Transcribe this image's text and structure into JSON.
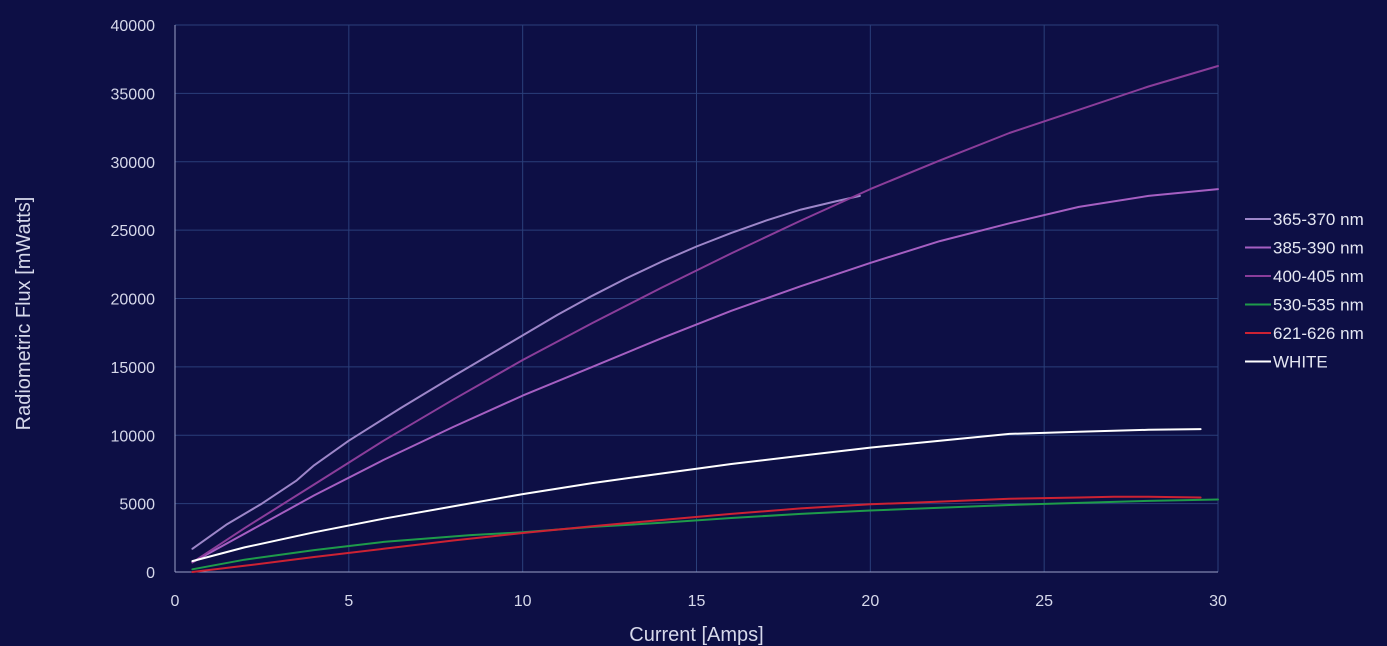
{
  "chart_data": {
    "type": "line",
    "title": "",
    "xlabel": "Current [Amps]",
    "ylabel": "Radiometric Flux [mWatts]",
    "xlim": [
      0,
      30
    ],
    "ylim": [
      0,
      40000
    ],
    "xticks": [
      0,
      5,
      10,
      15,
      20,
      25,
      30
    ],
    "yticks": [
      0,
      5000,
      10000,
      15000,
      20000,
      25000,
      30000,
      35000,
      40000
    ],
    "grid": true,
    "legend_position": "right",
    "series": [
      {
        "name": "365-370 nm",
        "color": "#9d86c9",
        "points": [
          [
            0.5,
            1700
          ],
          [
            1.5,
            3500
          ],
          [
            2.5,
            5000
          ],
          [
            3.5,
            6700
          ],
          [
            4,
            7800
          ],
          [
            5,
            9600
          ],
          [
            6.5,
            12000
          ],
          [
            8,
            14300
          ],
          [
            9,
            15800
          ],
          [
            10,
            17300
          ],
          [
            11,
            18800
          ],
          [
            12,
            20200
          ],
          [
            13,
            21500
          ],
          [
            14,
            22700
          ],
          [
            15,
            23800
          ],
          [
            16,
            24800
          ],
          [
            17,
            25700
          ],
          [
            18,
            26500
          ],
          [
            19,
            27100
          ],
          [
            19.7,
            27500
          ]
        ]
      },
      {
        "name": "385-390 nm",
        "color": "#a55fc2",
        "points": [
          [
            0.5,
            700
          ],
          [
            2,
            2800
          ],
          [
            4,
            5600
          ],
          [
            6,
            8200
          ],
          [
            8,
            10600
          ],
          [
            10,
            12900
          ],
          [
            12,
            15000
          ],
          [
            14,
            17100
          ],
          [
            16,
            19100
          ],
          [
            18,
            20900
          ],
          [
            20,
            22600
          ],
          [
            22,
            24200
          ],
          [
            24,
            25500
          ],
          [
            26,
            26700
          ],
          [
            28,
            27500
          ],
          [
            30,
            28000
          ]
        ]
      },
      {
        "name": "400-405 nm",
        "color": "#8a3d9a",
        "points": [
          [
            0.5,
            700
          ],
          [
            2,
            3200
          ],
          [
            4,
            6400
          ],
          [
            6,
            9600
          ],
          [
            8,
            12600
          ],
          [
            10,
            15500
          ],
          [
            12,
            18200
          ],
          [
            14,
            20800
          ],
          [
            16,
            23300
          ],
          [
            18,
            25700
          ],
          [
            20,
            28000
          ],
          [
            22,
            30100
          ],
          [
            24,
            32100
          ],
          [
            26,
            33800
          ],
          [
            28,
            35500
          ],
          [
            30,
            37000
          ]
        ]
      },
      {
        "name": "530-535 nm",
        "color": "#1e9b4a",
        "points": [
          [
            0.5,
            200
          ],
          [
            2,
            900
          ],
          [
            4,
            1600
          ],
          [
            6,
            2200
          ],
          [
            8.5,
            2700
          ],
          [
            10,
            2900
          ],
          [
            12,
            3300
          ],
          [
            14,
            3600
          ],
          [
            16,
            3950
          ],
          [
            18,
            4250
          ],
          [
            20,
            4500
          ],
          [
            22,
            4700
          ],
          [
            24,
            4900
          ],
          [
            26,
            5050
          ],
          [
            28,
            5200
          ],
          [
            30,
            5300
          ]
        ]
      },
      {
        "name": "621-626 nm",
        "color": "#cc2233",
        "points": [
          [
            0.5,
            0
          ],
          [
            2,
            450
          ],
          [
            4,
            1100
          ],
          [
            6,
            1700
          ],
          [
            8,
            2300
          ],
          [
            10,
            2850
          ],
          [
            12,
            3350
          ],
          [
            14,
            3800
          ],
          [
            16,
            4250
          ],
          [
            18,
            4650
          ],
          [
            20,
            4950
          ],
          [
            22,
            5150
          ],
          [
            24,
            5350
          ],
          [
            26,
            5450
          ],
          [
            27,
            5500
          ],
          [
            28,
            5500
          ],
          [
            29.5,
            5450
          ]
        ]
      },
      {
        "name": "WHITE",
        "color": "#ffffff",
        "points": [
          [
            0.5,
            800
          ],
          [
            2,
            1800
          ],
          [
            4,
            2900
          ],
          [
            6,
            3900
          ],
          [
            8,
            4800
          ],
          [
            10,
            5700
          ],
          [
            12,
            6500
          ],
          [
            14,
            7200
          ],
          [
            16,
            7900
          ],
          [
            18,
            8500
          ],
          [
            20,
            9100
          ],
          [
            22,
            9600
          ],
          [
            24,
            10100
          ],
          [
            26,
            10250
          ],
          [
            28,
            10400
          ],
          [
            29.5,
            10450
          ]
        ]
      }
    ]
  }
}
